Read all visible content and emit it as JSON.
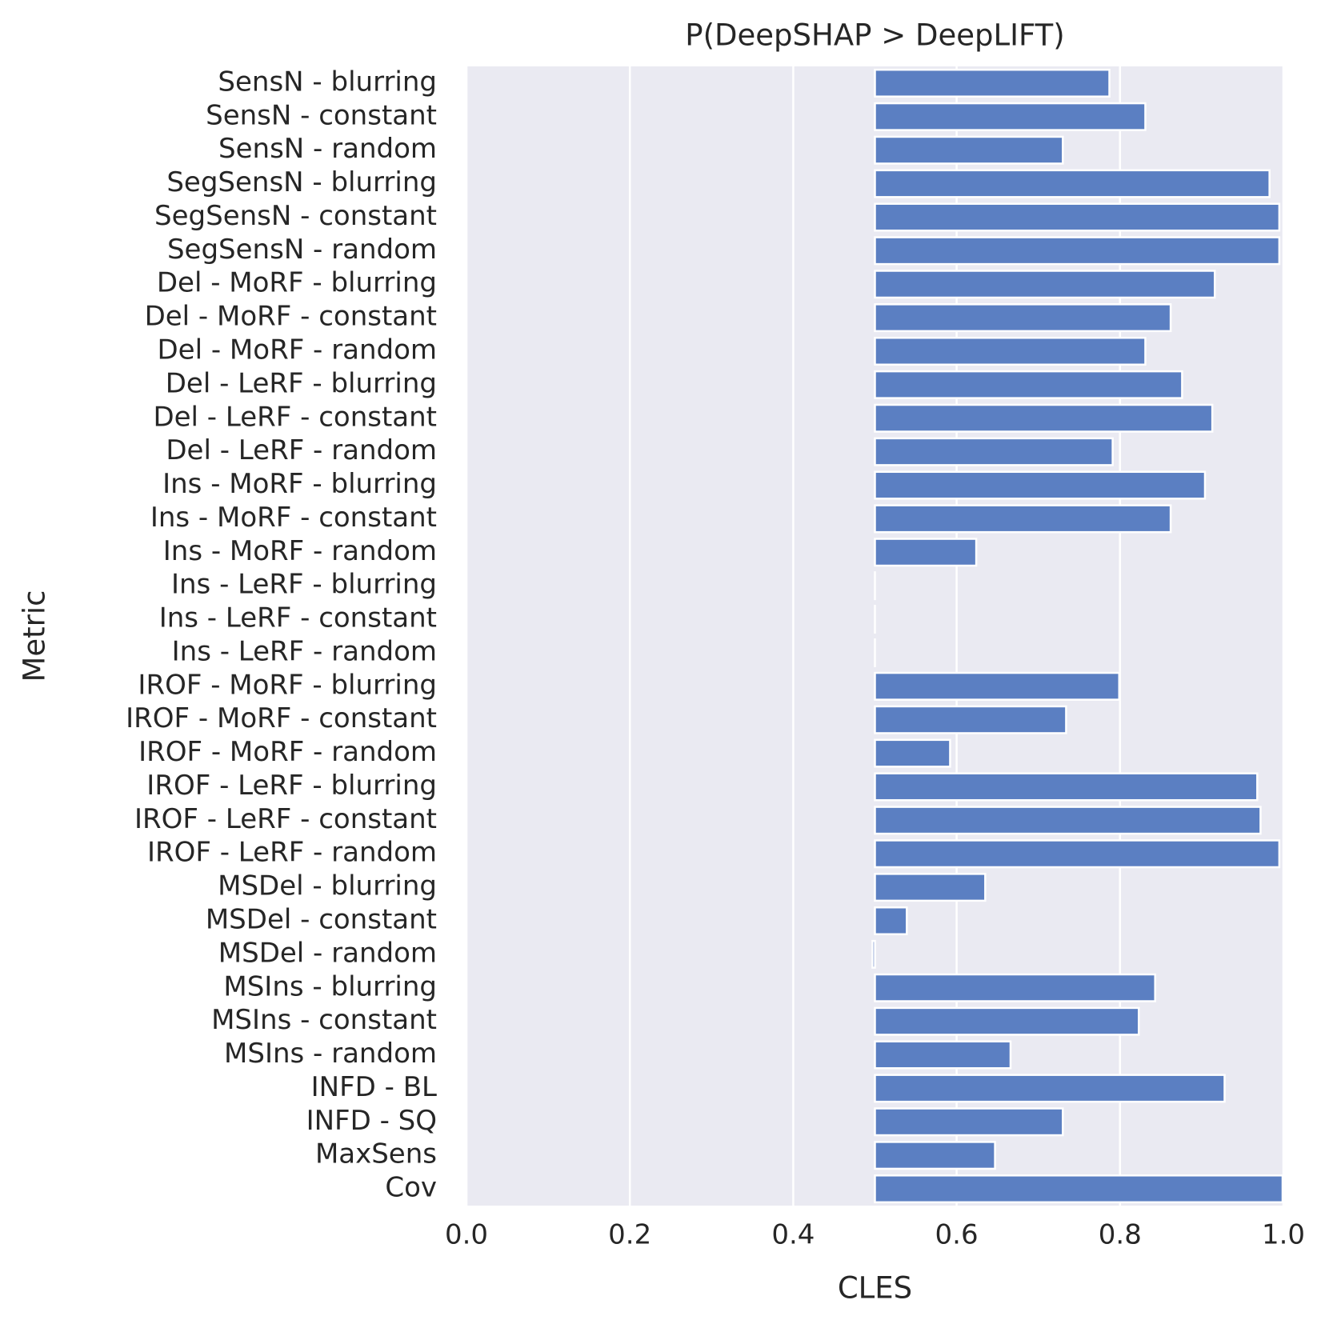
{
  "chart_data": {
    "type": "bar",
    "orientation": "horizontal",
    "title": "P(DeepSHAP > DeepLIFT)",
    "xlabel": "CLES",
    "ylabel": "Metric",
    "xlim": [
      0.0,
      1.0
    ],
    "bar_base": 0.5,
    "xticks": [
      "0.0",
      "0.2",
      "0.4",
      "0.6",
      "0.8",
      "1.0"
    ],
    "grid": true,
    "bar_color": "#5b7fc2",
    "background_color": "#eaeaf2",
    "grid_color": "#ffffff",
    "categories": [
      "SensN - blurring",
      "SensN - constant",
      "SensN - random",
      "SegSensN - blurring",
      "SegSensN - constant",
      "SegSensN - random",
      "Del - MoRF - blurring",
      "Del - MoRF - constant",
      "Del - MoRF - random",
      "Del - LeRF - blurring",
      "Del - LeRF - constant",
      "Del - LeRF - random",
      "Ins - MoRF - blurring",
      "Ins - MoRF - constant",
      "Ins - MoRF - random",
      "Ins - LeRF - blurring",
      "Ins - LeRF - constant",
      "Ins - LeRF - random",
      "IROF - MoRF - blurring",
      "IROF - MoRF - constant",
      "IROF - MoRF - random",
      "IROF - LeRF - blurring",
      "IROF - LeRF - constant",
      "IROF - LeRF - random",
      "MSDel - blurring",
      "MSDel - constant",
      "MSDel - random",
      "MSIns - blurring",
      "MSIns - constant",
      "MSIns - random",
      "INFD - BL",
      "INFD - SQ",
      "MaxSens",
      "Cov"
    ],
    "values": [
      0.787,
      0.831,
      0.73,
      0.983,
      0.995,
      0.995,
      0.916,
      0.862,
      0.831,
      0.876,
      0.913,
      0.791,
      0.904,
      0.862,
      0.624,
      0.5,
      0.5,
      0.5,
      0.799,
      0.734,
      0.592,
      0.968,
      0.972,
      0.995,
      0.635,
      0.539,
      0.497,
      0.843,
      0.823,
      0.666,
      0.928,
      0.73,
      0.647,
      0.999
    ]
  }
}
